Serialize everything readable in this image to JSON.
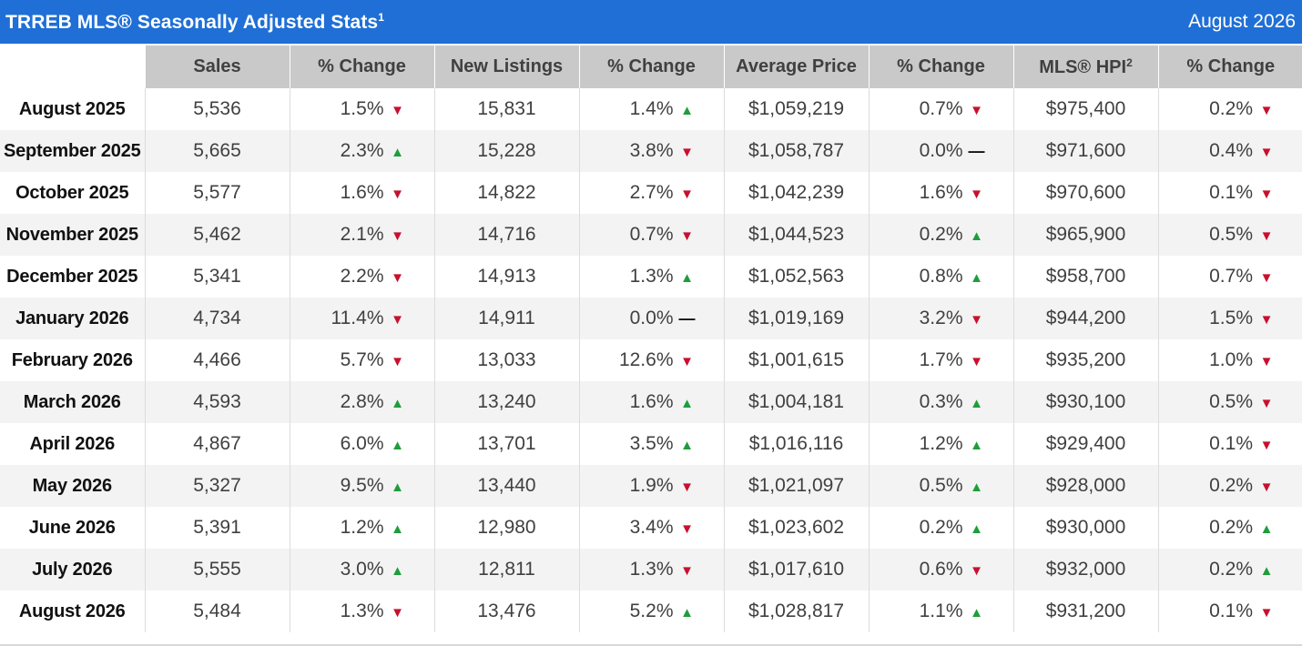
{
  "header": {
    "title": "TRREB MLS® Seasonally Adjusted Stats",
    "title_sup": "1",
    "date": "August 2026"
  },
  "columns": [
    {
      "label": "Sales",
      "sup": ""
    },
    {
      "label": "% Change",
      "sup": ""
    },
    {
      "label": "New Listings",
      "sup": ""
    },
    {
      "label": "% Change",
      "sup": ""
    },
    {
      "label": "Average Price",
      "sup": ""
    },
    {
      "label": "% Change",
      "sup": ""
    },
    {
      "label": "MLS® HPI",
      "sup": "2"
    },
    {
      "label": "% Change",
      "sup": ""
    }
  ],
  "icons": {
    "up": "triangle-up-icon",
    "down": "triangle-down-icon",
    "flat": "dash-icon"
  },
  "colors": {
    "header_bg": "#1f6fd6",
    "up": "#1e9e3b",
    "down": "#c8102e"
  },
  "rows": [
    {
      "month": "August 2025",
      "sales": "5,536",
      "sales_pct": "1.5%",
      "sales_dir": "down",
      "new_listings": "15,831",
      "nl_pct": "1.4%",
      "nl_dir": "up",
      "avg_price": "$1,059,219",
      "ap_pct": "0.7%",
      "ap_dir": "down",
      "hpi": "$975,400",
      "hpi_pct": "0.2%",
      "hpi_dir": "down"
    },
    {
      "month": "September 2025",
      "sales": "5,665",
      "sales_pct": "2.3%",
      "sales_dir": "up",
      "new_listings": "15,228",
      "nl_pct": "3.8%",
      "nl_dir": "down",
      "avg_price": "$1,058,787",
      "ap_pct": "0.0%",
      "ap_dir": "flat",
      "hpi": "$971,600",
      "hpi_pct": "0.4%",
      "hpi_dir": "down"
    },
    {
      "month": "October 2025",
      "sales": "5,577",
      "sales_pct": "1.6%",
      "sales_dir": "down",
      "new_listings": "14,822",
      "nl_pct": "2.7%",
      "nl_dir": "down",
      "avg_price": "$1,042,239",
      "ap_pct": "1.6%",
      "ap_dir": "down",
      "hpi": "$970,600",
      "hpi_pct": "0.1%",
      "hpi_dir": "down"
    },
    {
      "month": "November 2025",
      "sales": "5,462",
      "sales_pct": "2.1%",
      "sales_dir": "down",
      "new_listings": "14,716",
      "nl_pct": "0.7%",
      "nl_dir": "down",
      "avg_price": "$1,044,523",
      "ap_pct": "0.2%",
      "ap_dir": "up",
      "hpi": "$965,900",
      "hpi_pct": "0.5%",
      "hpi_dir": "down"
    },
    {
      "month": "December 2025",
      "sales": "5,341",
      "sales_pct": "2.2%",
      "sales_dir": "down",
      "new_listings": "14,913",
      "nl_pct": "1.3%",
      "nl_dir": "up",
      "avg_price": "$1,052,563",
      "ap_pct": "0.8%",
      "ap_dir": "up",
      "hpi": "$958,700",
      "hpi_pct": "0.7%",
      "hpi_dir": "down"
    },
    {
      "month": "January 2026",
      "sales": "4,734",
      "sales_pct": "11.4%",
      "sales_dir": "down",
      "new_listings": "14,911",
      "nl_pct": "0.0%",
      "nl_dir": "flat",
      "avg_price": "$1,019,169",
      "ap_pct": "3.2%",
      "ap_dir": "down",
      "hpi": "$944,200",
      "hpi_pct": "1.5%",
      "hpi_dir": "down"
    },
    {
      "month": "February 2026",
      "sales": "4,466",
      "sales_pct": "5.7%",
      "sales_dir": "down",
      "new_listings": "13,033",
      "nl_pct": "12.6%",
      "nl_dir": "down",
      "avg_price": "$1,001,615",
      "ap_pct": "1.7%",
      "ap_dir": "down",
      "hpi": "$935,200",
      "hpi_pct": "1.0%",
      "hpi_dir": "down"
    },
    {
      "month": "March 2026",
      "sales": "4,593",
      "sales_pct": "2.8%",
      "sales_dir": "up",
      "new_listings": "13,240",
      "nl_pct": "1.6%",
      "nl_dir": "up",
      "avg_price": "$1,004,181",
      "ap_pct": "0.3%",
      "ap_dir": "up",
      "hpi": "$930,100",
      "hpi_pct": "0.5%",
      "hpi_dir": "down"
    },
    {
      "month": "April 2026",
      "sales": "4,867",
      "sales_pct": "6.0%",
      "sales_dir": "up",
      "new_listings": "13,701",
      "nl_pct": "3.5%",
      "nl_dir": "up",
      "avg_price": "$1,016,116",
      "ap_pct": "1.2%",
      "ap_dir": "up",
      "hpi": "$929,400",
      "hpi_pct": "0.1%",
      "hpi_dir": "down"
    },
    {
      "month": "May 2026",
      "sales": "5,327",
      "sales_pct": "9.5%",
      "sales_dir": "up",
      "new_listings": "13,440",
      "nl_pct": "1.9%",
      "nl_dir": "down",
      "avg_price": "$1,021,097",
      "ap_pct": "0.5%",
      "ap_dir": "up",
      "hpi": "$928,000",
      "hpi_pct": "0.2%",
      "hpi_dir": "down"
    },
    {
      "month": "June 2026",
      "sales": "5,391",
      "sales_pct": "1.2%",
      "sales_dir": "up",
      "new_listings": "12,980",
      "nl_pct": "3.4%",
      "nl_dir": "down",
      "avg_price": "$1,023,602",
      "ap_pct": "0.2%",
      "ap_dir": "up",
      "hpi": "$930,000",
      "hpi_pct": "0.2%",
      "hpi_dir": "up"
    },
    {
      "month": "July 2026",
      "sales": "5,555",
      "sales_pct": "3.0%",
      "sales_dir": "up",
      "new_listings": "12,811",
      "nl_pct": "1.3%",
      "nl_dir": "down",
      "avg_price": "$1,017,610",
      "ap_pct": "0.6%",
      "ap_dir": "down",
      "hpi": "$932,000",
      "hpi_pct": "0.2%",
      "hpi_dir": "up"
    },
    {
      "month": "August 2026",
      "sales": "5,484",
      "sales_pct": "1.3%",
      "sales_dir": "down",
      "new_listings": "13,476",
      "nl_pct": "5.2%",
      "nl_dir": "up",
      "avg_price": "$1,028,817",
      "ap_pct": "1.1%",
      "ap_dir": "up",
      "hpi": "$931,200",
      "hpi_pct": "0.1%",
      "hpi_dir": "down"
    }
  ]
}
